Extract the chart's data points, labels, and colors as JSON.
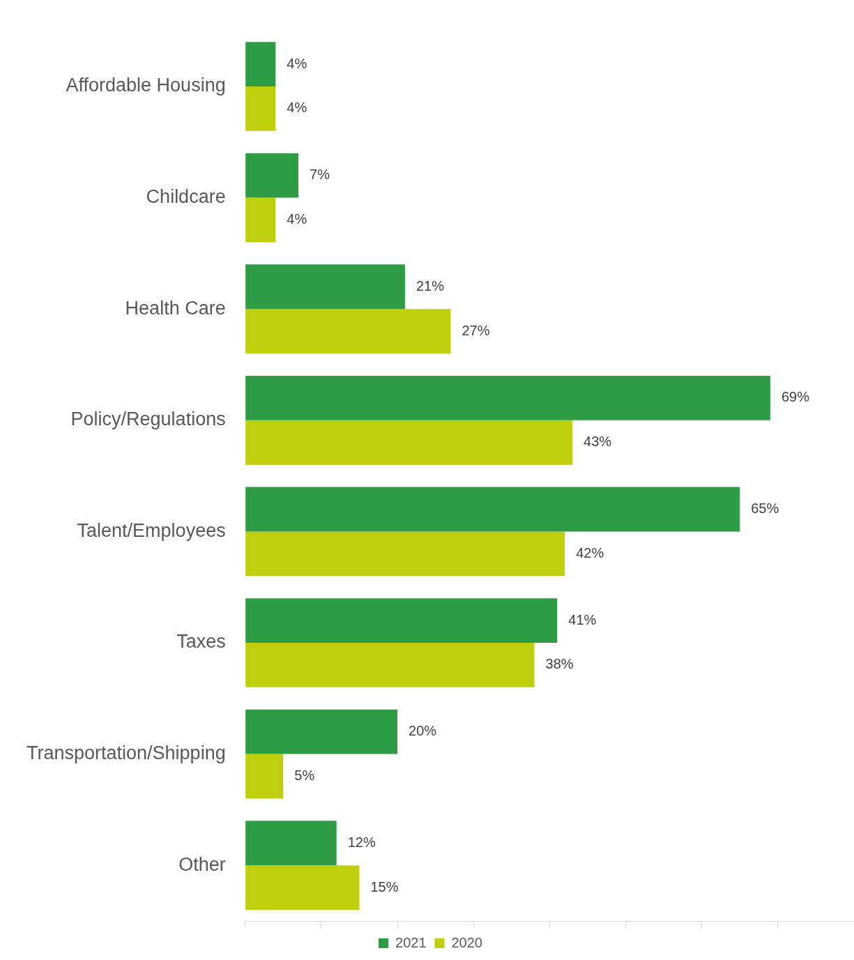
{
  "chart_data": {
    "type": "bar",
    "orientation": "horizontal",
    "categories": [
      "Affordable Housing",
      "Childcare",
      "Health Care",
      "Policy/Regulations",
      "Talent/Employees",
      "Taxes",
      "Transportation/Shipping",
      "Other"
    ],
    "series": [
      {
        "name": "2021",
        "color": "#2e9c45",
        "values": [
          4,
          7,
          21,
          69,
          65,
          41,
          20,
          12
        ],
        "value_labels": [
          "4%",
          "7%",
          "21%",
          "69%",
          "65%",
          "41%",
          "20%",
          "12%"
        ]
      },
      {
        "name": "2020",
        "color": "#bdd00b",
        "values": [
          4,
          4,
          27,
          43,
          42,
          38,
          5,
          15
        ],
        "value_labels": [
          "4%",
          "4%",
          "27%",
          "43%",
          "42%",
          "38%",
          "5%",
          "15%"
        ]
      }
    ],
    "xlim": [
      0,
      80
    ],
    "xticks": [
      {
        "value": 0,
        "label": null
      },
      {
        "value": 10,
        "label": null
      },
      {
        "value": 20,
        "label": null
      },
      {
        "value": 30,
        "label": null
      },
      {
        "value": 40,
        "label": null
      },
      {
        "value": 50,
        "label": null
      },
      {
        "value": 60,
        "label": null
      },
      {
        "value": 70,
        "label": null
      }
    ],
    "tick_labels": "y",
    "grid": false,
    "legend": "bottom"
  }
}
